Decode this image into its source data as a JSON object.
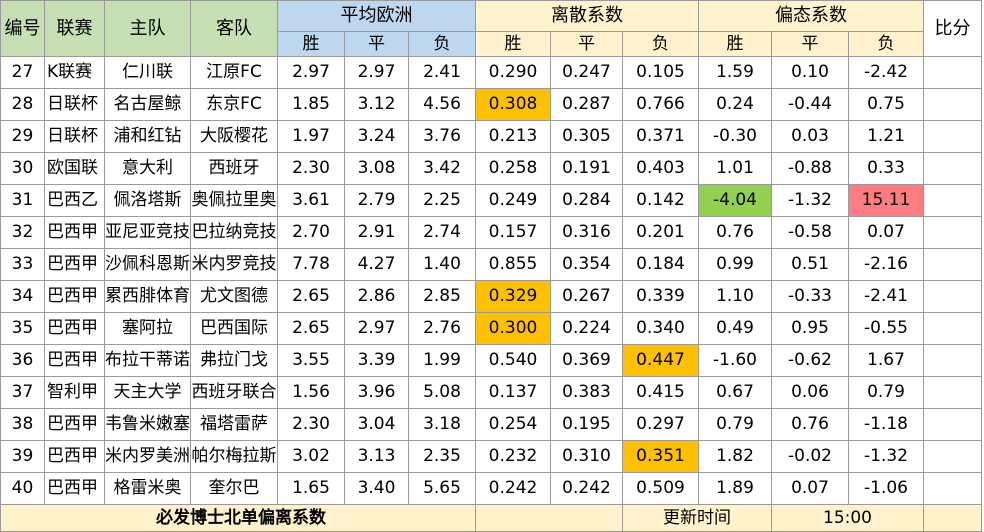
{
  "header": {
    "num": "编号",
    "league": "联赛",
    "home": "主队",
    "away": "客队",
    "avg_odds": "平均欧洲",
    "dispersion": "离散系数",
    "bias": "偏态系数",
    "score": "比分",
    "win": "胜",
    "draw": "平",
    "lose": "负"
  },
  "rows": [
    {
      "num": "27",
      "league": "K联赛",
      "home": "仁川联",
      "away": "江原FC",
      "o1": "2.97",
      "o2": "2.97",
      "o3": "2.41",
      "d1": "0.290",
      "d2": "0.247",
      "d3": "0.105",
      "b1": "1.59",
      "b2": "0.10",
      "b3": "-2.42"
    },
    {
      "num": "28",
      "league": "日联杯",
      "home": "名古屋鲸",
      "away": "东京FC",
      "o1": "1.85",
      "o2": "3.12",
      "o3": "4.56",
      "d1": "0.308",
      "d2": "0.287",
      "d3": "0.766",
      "b1": "0.24",
      "b2": "-0.44",
      "b3": "0.75"
    },
    {
      "num": "29",
      "league": "日联杯",
      "home": "浦和红钻",
      "away": "大阪樱花",
      "o1": "1.97",
      "o2": "3.24",
      "o3": "3.76",
      "d1": "0.213",
      "d2": "0.305",
      "d3": "0.371",
      "b1": "-0.30",
      "b2": "0.03",
      "b3": "1.21"
    },
    {
      "num": "30",
      "league": "欧国联",
      "home": "意大利",
      "away": "西班牙",
      "o1": "2.30",
      "o2": "3.08",
      "o3": "3.42",
      "d1": "0.258",
      "d2": "0.191",
      "d3": "0.403",
      "b1": "1.01",
      "b2": "-0.88",
      "b3": "0.33"
    },
    {
      "num": "31",
      "league": "巴西乙",
      "home": "佩洛塔斯",
      "away": "奥佩拉里奥",
      "o1": "3.61",
      "o2": "2.79",
      "o3": "2.25",
      "d1": "0.249",
      "d2": "0.284",
      "d3": "0.142",
      "b1": "-4.04",
      "b2": "-1.32",
      "b3": "15.11"
    },
    {
      "num": "32",
      "league": "巴西甲",
      "home": "亚尼亚竞技",
      "away": "巴拉纳竞技",
      "o1": "2.70",
      "o2": "2.91",
      "o3": "2.74",
      "d1": "0.157",
      "d2": "0.316",
      "d3": "0.201",
      "b1": "0.76",
      "b2": "-0.58",
      "b3": "0.07"
    },
    {
      "num": "33",
      "league": "巴西甲",
      "home": "沙佩科恩斯",
      "away": "米内罗竞技",
      "o1": "7.78",
      "o2": "4.27",
      "o3": "1.40",
      "d1": "0.855",
      "d2": "0.354",
      "d3": "0.184",
      "b1": "0.99",
      "b2": "0.51",
      "b3": "-2.16"
    },
    {
      "num": "34",
      "league": "巴西甲",
      "home": "累西腓体育",
      "away": "尤文图德",
      "o1": "2.65",
      "o2": "2.86",
      "o3": "2.85",
      "d1": "0.329",
      "d2": "0.267",
      "d3": "0.339",
      "b1": "1.10",
      "b2": "-0.33",
      "b3": "-2.41"
    },
    {
      "num": "35",
      "league": "巴西甲",
      "home": "塞阿拉",
      "away": "巴西国际",
      "o1": "2.65",
      "o2": "2.97",
      "o3": "2.76",
      "d1": "0.300",
      "d2": "0.224",
      "d3": "0.340",
      "b1": "0.49",
      "b2": "0.95",
      "b3": "-0.55"
    },
    {
      "num": "36",
      "league": "巴西甲",
      "home": "布拉干蒂诺",
      "away": "弗拉门戈",
      "o1": "3.55",
      "o2": "3.39",
      "o3": "1.99",
      "d1": "0.540",
      "d2": "0.369",
      "d3": "0.447",
      "b1": "-1.60",
      "b2": "-0.62",
      "b3": "1.67"
    },
    {
      "num": "37",
      "league": "智利甲",
      "home": "天主大学",
      "away": "西班牙联合",
      "o1": "1.56",
      "o2": "3.96",
      "o3": "5.08",
      "d1": "0.137",
      "d2": "0.383",
      "d3": "0.415",
      "b1": "0.67",
      "b2": "0.06",
      "b3": "0.79"
    },
    {
      "num": "38",
      "league": "巴西甲",
      "home": "韦鲁米嫩塞",
      "away": "福塔雷萨",
      "o1": "2.30",
      "o2": "3.04",
      "o3": "3.18",
      "d1": "0.254",
      "d2": "0.195",
      "d3": "0.297",
      "b1": "0.79",
      "b2": "0.76",
      "b3": "-1.18"
    },
    {
      "num": "39",
      "league": "巴西甲",
      "home": "米内罗美洲",
      "away": "帕尔梅拉斯",
      "o1": "3.02",
      "o2": "3.13",
      "o3": "2.35",
      "d1": "0.232",
      "d2": "0.310",
      "d3": "0.351",
      "b1": "1.82",
      "b2": "-0.02",
      "b3": "-1.32"
    },
    {
      "num": "40",
      "league": "巴西甲",
      "home": "格雷米奥",
      "away": "奎尔巴",
      "o1": "1.65",
      "o2": "3.40",
      "o3": "5.65",
      "d1": "0.242",
      "d2": "0.242",
      "d3": "0.509",
      "b1": "1.89",
      "b2": "0.07",
      "b3": "-1.06"
    }
  ],
  "highlights": [
    {
      "row": 1,
      "col": "d1",
      "color": "#ffc000"
    },
    {
      "row": 4,
      "col": "b1",
      "color": "#92d050"
    },
    {
      "row": 4,
      "col": "b3",
      "color": "#ff7c80"
    },
    {
      "row": 7,
      "col": "d1",
      "color": "#ffc000"
    },
    {
      "row": 8,
      "col": "d1",
      "color": "#ffc000"
    },
    {
      "row": 9,
      "col": "d3",
      "color": "#ffc000"
    },
    {
      "row": 12,
      "col": "d3",
      "color": "#ffc000"
    }
  ],
  "footer": {
    "title": "必发博士北单偏离系数",
    "update_label": "更新时间",
    "update_time": "15:00"
  },
  "colors": {
    "header_green": "#c6e0b4",
    "header_blue": "#bdd7ee",
    "header_peach": "#fff2cc",
    "highlight_orange": "#ffc000",
    "highlight_green": "#92d050",
    "highlight_red": "#ff7c80"
  }
}
